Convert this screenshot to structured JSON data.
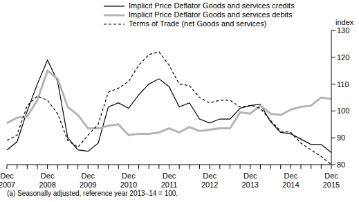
{
  "chart_data": {
    "type": "line",
    "ylabel": "index",
    "annotations": [
      "(a) Seasonally adjusted, reference year 2013–14 = 100."
    ],
    "categories": [
      "Dec 2007",
      null,
      null,
      null,
      "Dec 2008",
      null,
      null,
      null,
      "Dec 2009",
      null,
      null,
      null,
      "Dec 2010",
      null,
      null,
      null,
      "Dec 2011",
      null,
      null,
      null,
      "Dec 2012",
      null,
      null,
      null,
      "Dec 2013",
      null,
      null,
      null,
      "Dec 2014",
      null,
      null,
      null,
      "Dec 2015"
    ],
    "series": [
      {
        "name": "Implicit Price Deflator Goods and services credits",
        "color": "#000000",
        "line_style": "solid",
        "values": [
          85.5,
          88.5,
          100,
          110,
          119,
          111,
          90,
          85.5,
          85,
          88,
          101.5,
          103,
          101,
          106,
          110,
          112,
          109,
          101.5,
          103,
          97,
          95.5,
          97,
          97,
          101,
          102,
          102.5,
          96,
          92,
          91.5,
          89.5,
          87.5,
          87.5,
          84.5
        ]
      },
      {
        "name": "Implicit Price Deflator Goods and services debits",
        "color": "#b4b4b4",
        "line_style": "solid",
        "values": [
          95.5,
          97.5,
          98,
          104,
          115,
          112,
          101.5,
          98.5,
          93.5,
          93.5,
          94.5,
          95,
          91,
          91.5,
          91.5,
          92,
          93.5,
          92,
          94,
          92.5,
          93,
          93.5,
          93.5,
          99.5,
          99,
          102,
          99,
          98.5,
          100.5,
          101.5,
          102,
          105,
          104.5
        ]
      },
      {
        "name": "Terms of Trade (net Goods and services)",
        "color": "#000000",
        "line_style": "dashed",
        "values": [
          89,
          91,
          102,
          105.5,
          104,
          99,
          89,
          86.5,
          91,
          95,
          107,
          108.5,
          111,
          117,
          121,
          122,
          117,
          110,
          109.5,
          105,
          103,
          104,
          104,
          101.5,
          102,
          101,
          96.5,
          92.5,
          92,
          88,
          85.5,
          83,
          80
        ]
      }
    ],
    "ylim": [
      80,
      130
    ],
    "yticks": [
      80,
      90,
      100,
      110,
      120,
      130
    ],
    "grid": false,
    "legend": "top"
  }
}
